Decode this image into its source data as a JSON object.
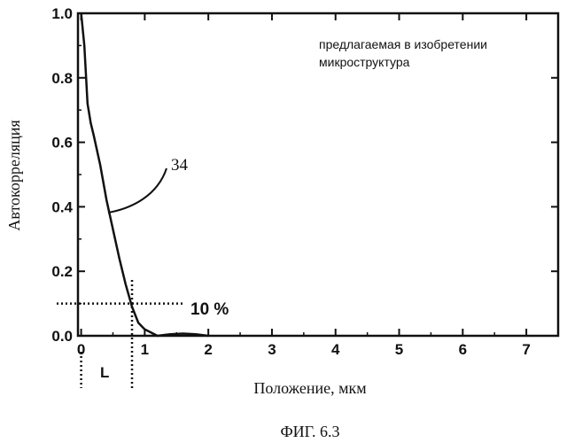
{
  "chart_data": {
    "type": "line",
    "xlabel": "Положение, мкм",
    "ylabel": "Автокорреляция",
    "xlim": [
      -0.05,
      7.5
    ],
    "ylim": [
      0.0,
      1.0
    ],
    "xticks": [
      0,
      1,
      2,
      3,
      4,
      5,
      6,
      7
    ],
    "xtick_labels": [
      "0",
      "1",
      "2",
      "3",
      "4",
      "5",
      "6",
      "7"
    ],
    "yticks": [
      0.0,
      0.2,
      0.4,
      0.6,
      0.8,
      1.0
    ],
    "ytick_labels": [
      "0.0",
      "0.2",
      "0.4",
      "0.6",
      "0.8",
      "1.0"
    ],
    "grid": false,
    "series": [
      {
        "x": [
          0.0,
          0.05,
          0.1,
          0.15,
          0.2,
          0.3,
          0.4,
          0.5,
          0.6,
          0.7,
          0.8,
          0.9,
          1.0,
          1.1,
          1.2,
          1.4,
          1.6,
          1.8,
          2.0
        ],
        "y": [
          1.0,
          0.9,
          0.72,
          0.66,
          0.62,
          0.53,
          0.42,
          0.33,
          0.24,
          0.16,
          0.09,
          0.04,
          0.02,
          0.01,
          0.0,
          0.005,
          0.007,
          0.005,
          0.0
        ]
      }
    ],
    "annotations": {
      "legend_text": [
        "предлагаемая в изобретении",
        "микроструктура"
      ],
      "curve_label": "34",
      "threshold_label": "10 %",
      "threshold_y": 0.1,
      "threshold_x": 0.8,
      "length_label": "L"
    }
  },
  "figure_caption": "ФИГ. 6.3"
}
